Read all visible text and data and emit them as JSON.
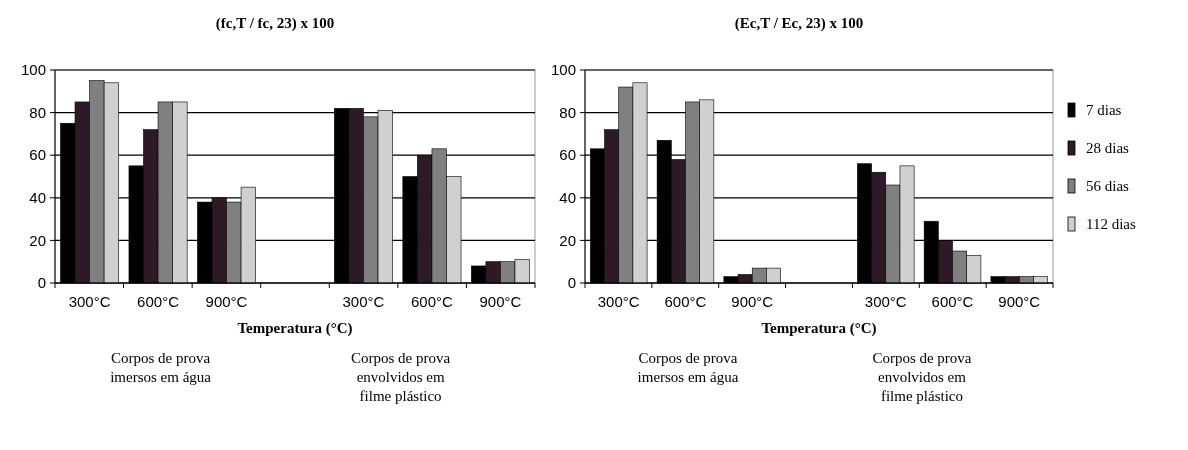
{
  "chart_data": [
    {
      "type": "bar",
      "title": "(fc,T / fc, 23) x 100",
      "xlabel": "Temperatura (°C)",
      "categories": [
        "300°C",
        "600°C",
        "900°C",
        null,
        "300°C",
        "600°C",
        "900°C"
      ],
      "series": [
        {
          "color": "#000000",
          "values": [
            75,
            55,
            38,
            null,
            82,
            50,
            8
          ]
        },
        {
          "color": "#2e1a26",
          "values": [
            85,
            72,
            40,
            null,
            82,
            60,
            10
          ]
        },
        {
          "color": "#808080",
          "values": [
            95,
            85,
            38,
            null,
            78,
            63,
            10
          ]
        },
        {
          "color": "#d0d0d0",
          "values": [
            94,
            85,
            45,
            null,
            81,
            50,
            11
          ]
        }
      ],
      "ylim": [
        0,
        100
      ],
      "yticks": [
        0,
        20,
        40,
        60,
        80,
        100
      ],
      "grid": "y",
      "legend": false,
      "annotations": [
        "Corpos de prova\nimersos em água",
        "Corpos de prova\nenvolvidos em\nfilme plástico"
      ]
    },
    {
      "type": "bar",
      "title": "(Ec,T / Ec, 23) x 100",
      "xlabel": "Temperatura (°C)",
      "categories": [
        "300°C",
        "600°C",
        "900°C",
        null,
        "300°C",
        "600°C",
        "900°C"
      ],
      "series": [
        {
          "name": "7 dias",
          "color": "#000000",
          "values": [
            63,
            67,
            3,
            null,
            56,
            29,
            3
          ]
        },
        {
          "name": "28 dias",
          "color": "#2e1a26",
          "values": [
            72,
            58,
            4,
            null,
            52,
            20,
            3
          ]
        },
        {
          "name": "56 dias",
          "color": "#808080",
          "values": [
            92,
            85,
            7,
            null,
            46,
            15,
            3
          ]
        },
        {
          "name": "112 dias",
          "color": "#d0d0d0",
          "values": [
            94,
            86,
            7,
            null,
            55,
            13,
            3
          ]
        }
      ],
      "ylim": [
        0,
        100
      ],
      "yticks": [
        0,
        20,
        40,
        60,
        80,
        100
      ],
      "grid": "y",
      "legend": "right",
      "annotations": [
        "Corpos de prova\nimersos em água",
        "Corpos de prova\nenvolvidos em\nfilme plástico"
      ]
    }
  ]
}
